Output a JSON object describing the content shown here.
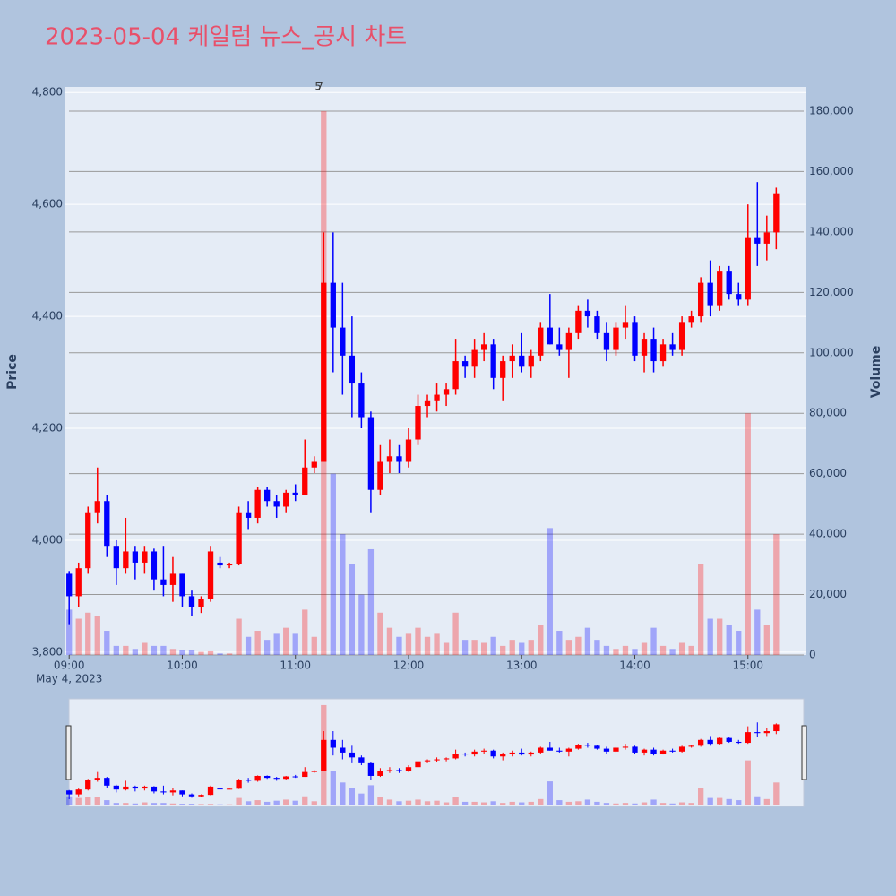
{
  "chart_data": {
    "type": "candlestick",
    "title": "2023-05-04 케일럼 뉴스_공시 차트",
    "y_title": "Price",
    "y2_title": "Volume",
    "x_sublabel": "May 4, 2023",
    "up_color": "#ff0000",
    "down_color": "#0000ff",
    "xlim": [
      "08:58",
      "15:31"
    ],
    "xticks": [
      "09:00",
      "10:00",
      "11:00",
      "12:00",
      "13:00",
      "14:00",
      "15:00"
    ],
    "ylim": [
      3795,
      4810
    ],
    "yticks": [
      {
        "value": 3800,
        "label": "3,800"
      },
      {
        "value": 4000,
        "label": "4,000"
      },
      {
        "value": 4200,
        "label": "4,200"
      },
      {
        "value": 4400,
        "label": "4,400"
      },
      {
        "value": 4600,
        "label": "4,600"
      },
      {
        "value": 4800,
        "label": "4,800"
      }
    ],
    "y2lim": [
      0,
      188000
    ],
    "y2ticks": [
      0,
      {
        "value": 20000,
        "label": "20,000"
      },
      {
        "value": 40000,
        "label": "40,000"
      },
      {
        "value": 60000,
        "label": "60,000"
      },
      {
        "value": 80000,
        "label": "80,000"
      },
      {
        "value": 100000,
        "label": "100,000"
      },
      {
        "value": 120000,
        "label": "120,000"
      },
      {
        "value": 140000,
        "label": "140,000"
      },
      {
        "value": 160000,
        "label": "160,000"
      },
      {
        "value": 180000,
        "label": "180,000"
      }
    ],
    "annotations": [
      {
        "x": "11:12",
        "text": "5"
      },
      {
        "x": "11:13",
        "text": "7"
      }
    ],
    "x": [
      "09:00",
      "09:05",
      "09:10",
      "09:15",
      "09:20",
      "09:25",
      "09:30",
      "09:35",
      "09:40",
      "09:45",
      "09:50",
      "09:55",
      "10:00",
      "10:05",
      "10:10",
      "10:15",
      "10:20",
      "10:25",
      "10:30",
      "10:35",
      "10:40",
      "10:45",
      "10:50",
      "10:55",
      "11:00",
      "11:05",
      "11:10",
      "11:15",
      "11:20",
      "11:25",
      "11:30",
      "11:35",
      "11:40",
      "11:45",
      "11:50",
      "11:55",
      "12:00",
      "12:05",
      "12:10",
      "12:15",
      "12:20",
      "12:25",
      "12:30",
      "12:35",
      "12:40",
      "12:45",
      "12:50",
      "12:55",
      "13:00",
      "13:05",
      "13:10",
      "13:15",
      "13:20",
      "13:25",
      "13:30",
      "13:35",
      "13:40",
      "13:45",
      "13:50",
      "13:55",
      "14:00",
      "14:05",
      "14:10",
      "14:15",
      "14:20",
      "14:25",
      "14:30",
      "14:35",
      "14:40",
      "14:45",
      "14:50",
      "14:55",
      "15:00",
      "15:05",
      "15:10",
      "15:15"
    ],
    "open": [
      3940,
      3900,
      3950,
      4050,
      4070,
      3990,
      3950,
      3980,
      3960,
      3980,
      3930,
      3920,
      3940,
      3900,
      3880,
      3895,
      3960,
      3955,
      3958,
      4050,
      4040,
      4090,
      4070,
      4060,
      4085,
      4080,
      4130,
      4140,
      4460,
      4380,
      4330,
      4280,
      4220,
      4090,
      4140,
      4150,
      4140,
      4180,
      4240,
      4250,
      4260,
      4270,
      4320,
      4310,
      4340,
      4350,
      4290,
      4320,
      4330,
      4310,
      4330,
      4380,
      4350,
      4340,
      4370,
      4410,
      4400,
      4370,
      4340,
      4380,
      4390,
      4330,
      4360,
      4320,
      4350,
      4340,
      4390,
      4400,
      4460,
      4420,
      4480,
      4440,
      4430,
      4540,
      4530,
      4550
    ],
    "high": [
      3945,
      3960,
      4060,
      4130,
      4080,
      4000,
      4040,
      3990,
      3990,
      3985,
      3990,
      3970,
      3940,
      3910,
      3900,
      3990,
      3970,
      3960,
      4060,
      4070,
      4095,
      4095,
      4080,
      4090,
      4100,
      4180,
      4150,
      4550,
      4550,
      4460,
      4400,
      4300,
      4230,
      4170,
      4180,
      4170,
      4200,
      4260,
      4260,
      4280,
      4280,
      4360,
      4330,
      4360,
      4370,
      4360,
      4330,
      4350,
      4370,
      4340,
      4390,
      4440,
      4380,
      4380,
      4420,
      4430,
      4410,
      4390,
      4390,
      4420,
      4400,
      4370,
      4380,
      4360,
      4370,
      4400,
      4410,
      4470,
      4500,
      4490,
      4490,
      4460,
      4600,
      4640,
      4580,
      4630
    ],
    "low": [
      3850,
      3880,
      3940,
      4030,
      3970,
      3920,
      3940,
      3930,
      3940,
      3910,
      3900,
      3890,
      3880,
      3865,
      3870,
      3890,
      3950,
      3950,
      3955,
      4020,
      4030,
      4060,
      4040,
      4050,
      4070,
      4080,
      4120,
      4140,
      4300,
      4260,
      4220,
      4200,
      4050,
      4080,
      4120,
      4120,
      4130,
      4170,
      4220,
      4230,
      4240,
      4260,
      4290,
      4290,
      4320,
      4270,
      4250,
      4290,
      4300,
      4290,
      4320,
      4350,
      4330,
      4290,
      4360,
      4380,
      4360,
      4320,
      4330,
      4360,
      4320,
      4300,
      4300,
      4310,
      4330,
      4330,
      4380,
      4390,
      4400,
      4410,
      4430,
      4420,
      4420,
      4490,
      4500,
      4520
    ],
    "close": [
      3900,
      3950,
      4050,
      4070,
      3990,
      3950,
      3980,
      3960,
      3980,
      3930,
      3920,
      3940,
      3900,
      3880,
      3895,
      3980,
      3955,
      3958,
      4050,
      4040,
      4090,
      4070,
      4060,
      4085,
      4080,
      4130,
      4140,
      4460,
      4380,
      4330,
      4280,
      4220,
      4090,
      4140,
      4150,
      4140,
      4180,
      4240,
      4250,
      4260,
      4270,
      4320,
      4310,
      4340,
      4350,
      4290,
      4320,
      4330,
      4310,
      4330,
      4380,
      4350,
      4340,
      4370,
      4410,
      4400,
      4370,
      4340,
      4380,
      4390,
      4330,
      4360,
      4320,
      4350,
      4340,
      4390,
      4400,
      4460,
      4420,
      4480,
      4440,
      4430,
      4540,
      4530,
      4550,
      4620
    ],
    "volume": [
      15000,
      12000,
      14000,
      13000,
      8000,
      3000,
      3000,
      2000,
      4000,
      3000,
      3000,
      2000,
      1500,
      1500,
      1000,
      1200,
      500,
      500,
      12000,
      6000,
      8000,
      5000,
      7000,
      9000,
      7000,
      15000,
      6000,
      180000,
      60000,
      40000,
      30000,
      20000,
      35000,
      14000,
      9000,
      6000,
      7000,
      9000,
      6000,
      7000,
      4000,
      14000,
      5000,
      5000,
      4000,
      6000,
      3000,
      5000,
      4000,
      5000,
      10000,
      42000,
      8000,
      5000,
      6000,
      9000,
      5000,
      3000,
      2000,
      3000,
      2000,
      4000,
      9000,
      3000,
      2000,
      4000,
      3000,
      30000,
      12000,
      12000,
      10000,
      8000,
      80000,
      15000,
      10000,
      40000
    ]
  }
}
